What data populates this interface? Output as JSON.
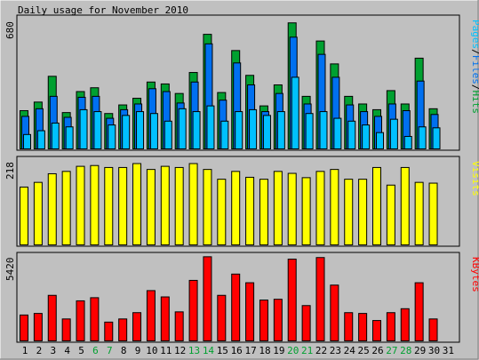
{
  "title": "Daily usage for November 2010",
  "colors": {
    "background": "#c0c0c0",
    "panel_border": "#000000",
    "hits": "#00a030",
    "files": "#0070f0",
    "pages": "#00c0ff",
    "visits": "#ffff00",
    "kbytes": "#ff0000",
    "weekday_label": "#000000",
    "weekend_label": "#00a030",
    "hits_legend": "#00a030",
    "files_legend": "#0070f0",
    "pages_legend": "#00c0ff",
    "slash_legend": "#000000"
  },
  "chart_data": [
    {
      "type": "bar",
      "title": "Daily usage for November 2010",
      "panel": "hits-files-pages",
      "ylabel_max": "680",
      "ylim": [
        0,
        680
      ],
      "legend": {
        "pages": "Pages",
        "files": "Files",
        "hits": "Hits",
        "separator": "/"
      },
      "categories": [
        "1",
        "2",
        "3",
        "4",
        "5",
        "6",
        "7",
        "8",
        "9",
        "10",
        "11",
        "12",
        "13",
        "14",
        "15",
        "16",
        "17",
        "18",
        "19",
        "20",
        "21",
        "22",
        "23",
        "24",
        "25",
        "26",
        "27",
        "28",
        "29",
        "30",
        "31"
      ],
      "weekend_days": [
        6,
        7,
        13,
        14,
        20,
        21,
        27,
        28
      ],
      "series": [
        {
          "name": "Hits",
          "values": [
            205,
            250,
            385,
            195,
            305,
            325,
            190,
            235,
            270,
            355,
            345,
            295,
            405,
            605,
            300,
            520,
            390,
            230,
            340,
            665,
            280,
            570,
            450,
            280,
            240,
            210,
            310,
            240,
            480,
            215,
            0
          ]
        },
        {
          "name": "Files",
          "values": [
            175,
            215,
            280,
            170,
            275,
            280,
            165,
            210,
            240,
            320,
            305,
            245,
            355,
            555,
            260,
            455,
            340,
            200,
            295,
            590,
            240,
            500,
            380,
            235,
            200,
            175,
            240,
            205,
            360,
            185,
            0
          ]
        },
        {
          "name": "Pages",
          "values": [
            80,
            100,
            140,
            120,
            210,
            200,
            130,
            180,
            200,
            190,
            150,
            215,
            200,
            230,
            150,
            200,
            210,
            180,
            200,
            380,
            190,
            200,
            165,
            150,
            130,
            90,
            160,
            70,
            120,
            115,
            0
          ]
        }
      ]
    },
    {
      "type": "bar",
      "panel": "visits",
      "ylabel_max": "218",
      "ylim": [
        0,
        218
      ],
      "legend": {
        "visits": "Visits"
      },
      "categories": [
        "1",
        "2",
        "3",
        "4",
        "5",
        "6",
        "7",
        "8",
        "9",
        "10",
        "11",
        "12",
        "13",
        "14",
        "15",
        "16",
        "17",
        "18",
        "19",
        "20",
        "21",
        "22",
        "23",
        "24",
        "25",
        "26",
        "27",
        "28",
        "29",
        "30",
        "31"
      ],
      "series": [
        {
          "name": "Visits",
          "values": [
            150,
            162,
            184,
            190,
            203,
            205,
            200,
            200,
            210,
            195,
            203,
            200,
            210,
            195,
            170,
            190,
            175,
            170,
            190,
            185,
            174,
            190,
            195,
            170,
            170,
            200,
            155,
            200,
            162,
            160,
            0
          ]
        }
      ],
      "visits_values": [
        150,
        162,
        184,
        190,
        203,
        205,
        200,
        200,
        210,
        195,
        203,
        200,
        210,
        195,
        170,
        190,
        175,
        170,
        190,
        185,
        174,
        190,
        195,
        170,
        170,
        200,
        155,
        200,
        162,
        160,
        0
      ]
    },
    {
      "type": "bar",
      "panel": "kbytes",
      "ylabel_max": "5420",
      "ylim": [
        0,
        5420
      ],
      "legend": {
        "kbytes": "KBytes"
      },
      "categories": [
        "1",
        "2",
        "3",
        "4",
        "5",
        "6",
        "7",
        "8",
        "9",
        "10",
        "11",
        "12",
        "13",
        "14",
        "15",
        "16",
        "17",
        "18",
        "19",
        "20",
        "21",
        "22",
        "23",
        "24",
        "25",
        "26",
        "27",
        "28",
        "29",
        "30",
        "31"
      ],
      "series": [
        {
          "name": "KBytes",
          "values": [
            1700,
            1800,
            2950,
            1450,
            2600,
            2800,
            1250,
            1450,
            1850,
            3250,
            2850,
            1900,
            3900,
            5400,
            2950,
            4300,
            3750,
            2650,
            2700,
            5250,
            2300,
            5350,
            3600,
            1850,
            1800,
            1350,
            1850,
            2100,
            3750,
            1450,
            0
          ]
        }
      ]
    }
  ]
}
